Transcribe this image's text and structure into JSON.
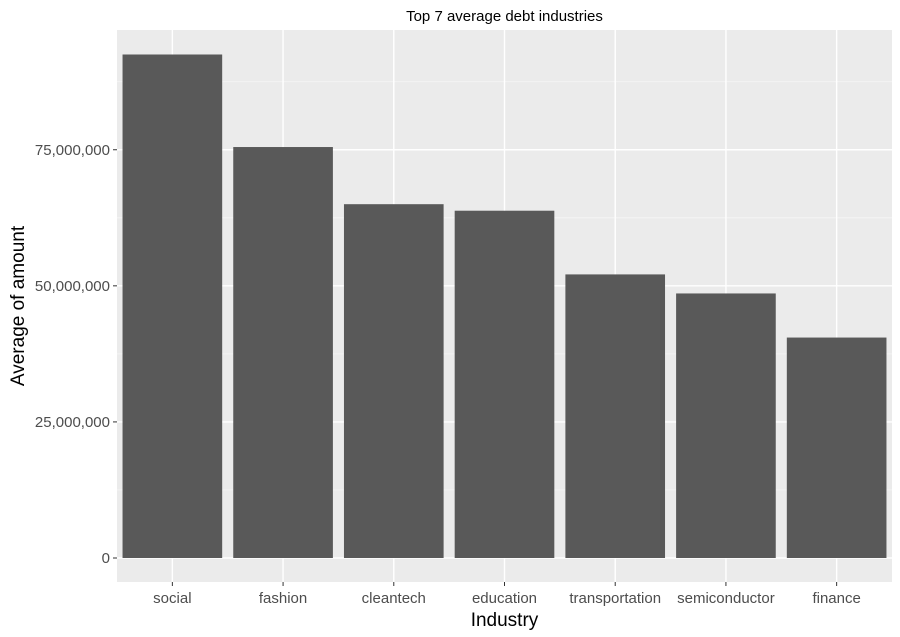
{
  "chart_data": {
    "type": "bar",
    "title": "Top 7 average debt industries",
    "xlabel": "Industry",
    "ylabel": "Average of amount",
    "categories": [
      "social",
      "fashion",
      "cleantech",
      "education",
      "transportation",
      "semiconductor",
      "finance"
    ],
    "values": [
      92500000,
      75500000,
      65000000,
      63800000,
      52100000,
      48600000,
      40500000
    ],
    "ylim": [
      0,
      97000000
    ],
    "yticks": [
      0,
      25000000,
      50000000,
      75000000
    ],
    "ytick_labels": [
      "0",
      "25,000,000",
      "50,000,000",
      "75,000,000"
    ],
    "grid": true,
    "colors": {
      "bar": "#595959",
      "panel": "#ebebeb",
      "grid_major": "#ffffff",
      "grid_minor": "#f5f5f5",
      "tick": "#333333"
    }
  }
}
